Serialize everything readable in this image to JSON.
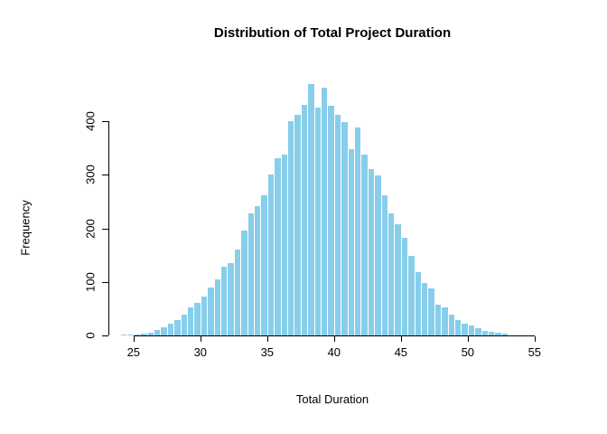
{
  "chart_data": {
    "type": "bar",
    "subtype": "histogram",
    "title": "Distribution of Total Project Duration",
    "xlabel": "Total Duration",
    "ylabel": "Frequency",
    "bin_width": 0.5,
    "bin_starts": [
      24,
      24.5,
      25,
      25.5,
      26,
      26.5,
      27,
      27.5,
      28,
      28.5,
      29,
      29.5,
      30,
      30.5,
      31,
      31.5,
      32,
      32.5,
      33,
      33.5,
      34,
      34.5,
      35,
      35.5,
      36,
      36.5,
      37,
      37.5,
      38,
      38.5,
      39,
      39.5,
      40,
      40.5,
      41,
      41.5,
      42,
      42.5,
      43,
      43.5,
      44,
      44.5,
      45,
      45.5,
      46,
      46.5,
      47,
      47.5,
      48,
      48.5,
      49,
      49.5,
      50,
      50.5,
      51,
      51.5,
      52,
      52.5
    ],
    "frequencies": [
      1,
      1,
      2,
      3,
      5,
      10,
      15,
      22,
      28,
      38,
      52,
      60,
      72,
      90,
      105,
      128,
      135,
      160,
      195,
      228,
      242,
      262,
      300,
      330,
      338,
      400,
      412,
      430,
      470,
      425,
      462,
      428,
      412,
      398,
      348,
      388,
      338,
      310,
      298,
      262,
      228,
      208,
      182,
      148,
      118,
      98,
      88,
      58,
      52,
      38,
      28,
      22,
      18,
      14,
      8,
      6,
      5,
      3
    ],
    "xticks": [
      25,
      30,
      35,
      40,
      45,
      50,
      55
    ],
    "yticks": [
      0,
      100,
      200,
      300,
      400
    ],
    "xlim": [
      23.5,
      55.8
    ],
    "ylim": [
      0,
      470
    ],
    "grid": false,
    "legend": "none",
    "bar_color": "#87CEEB",
    "bar_border": "#FFFFFF",
    "axis_color": "#000000"
  }
}
